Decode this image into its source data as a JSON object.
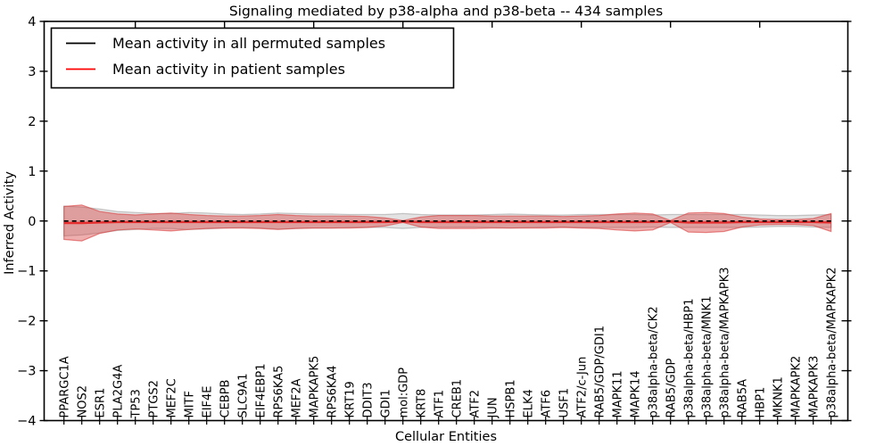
{
  "figure": {
    "background": "#ffffff",
    "spine_color": "#000000"
  },
  "chart_data": {
    "type": "line",
    "title": "Signaling mediated by p38-alpha and p38-beta -- 434 samples",
    "xlabel": "Cellular Entities",
    "ylabel": "Inferred Activity",
    "ylim": [
      -4,
      4
    ],
    "xlim": [
      0,
      45
    ],
    "grid": false,
    "legend_position": "upper left",
    "ytick_labels": [
      "4",
      "3",
      "2",
      "1",
      "0",
      "−1",
      "−2",
      "−3",
      "−4"
    ],
    "yticks": [
      4,
      3,
      2,
      1,
      0,
      -1,
      -2,
      -3,
      -4
    ],
    "top_xticks": [
      5,
      10,
      15,
      20,
      25,
      30,
      35,
      40
    ],
    "categories": [
      "PPARGC1A",
      "NOS2",
      "ESR1",
      "PLA2G4A",
      "TP53",
      "PTGS2",
      "MEF2C",
      "MITF",
      "EIF4E",
      "CEBPB",
      "SLC9A1",
      "EIF4EBP1",
      "RPS6KA5",
      "MEF2A",
      "MAPKAPK5",
      "RPS6KA4",
      "KRT19",
      "DDIT3",
      "GDI1",
      "mol:GDP",
      "KRT8",
      "ATF1",
      "CREB1",
      "ATF2",
      "JUN",
      "HSPB1",
      "ELK4",
      "ATF6",
      "USF1",
      "ATF2/c-Jun",
      "RAB5/GDP/GDI1",
      "MAPK11",
      "MAPK14",
      "p38alpha-beta/CK2",
      "RAB5/GDP",
      "p38alpha-beta/HBP1",
      "p38alpha-beta/MNK1",
      "p38alpha-beta/MAPKAPK3",
      "RAB5A",
      "HBP1",
      "MKNK1",
      "MAPKAPK2",
      "MAPKAPK3",
      "p38alpha-beta/MAPKAPK2"
    ],
    "series": [
      {
        "name": "Mean activity in all permuted samples",
        "color": "#000000",
        "line_style": "dashed",
        "band_fill": "rgba(128,128,128,0.22)",
        "band_edge": "rgba(110,110,110,0.35)",
        "values": [
          0,
          0,
          0,
          0,
          0,
          0,
          0,
          0,
          0,
          0,
          0,
          0,
          0,
          0,
          0,
          0,
          0,
          0,
          0,
          0,
          0,
          0,
          0,
          0,
          0,
          0,
          0,
          0,
          0,
          0,
          0,
          0,
          0,
          0,
          0,
          0,
          0,
          0,
          0,
          0,
          0,
          0,
          0,
          0
        ],
        "band_half_widths": [
          0.3,
          0.28,
          0.24,
          0.19,
          0.17,
          0.15,
          0.15,
          0.17,
          0.16,
          0.14,
          0.13,
          0.14,
          0.16,
          0.15,
          0.14,
          0.14,
          0.13,
          0.13,
          0.13,
          0.15,
          0.13,
          0.12,
          0.12,
          0.12,
          0.13,
          0.14,
          0.13,
          0.12,
          0.12,
          0.13,
          0.13,
          0.13,
          0.13,
          0.12,
          0.13,
          0.13,
          0.13,
          0.13,
          0.13,
          0.12,
          0.11,
          0.11,
          0.12,
          0.13
        ]
      },
      {
        "name": "Mean activity in patient samples",
        "color": "#ff0000",
        "line_style": "solid",
        "band_fill": "rgba(217,62,62,0.42)",
        "band_edge": "rgba(217,62,62,0.60)",
        "values": [
          -0.04,
          -0.04,
          -0.03,
          -0.02,
          -0.02,
          -0.02,
          -0.02,
          -0.02,
          -0.02,
          -0.02,
          -0.02,
          -0.02,
          -0.02,
          -0.02,
          -0.02,
          -0.02,
          -0.02,
          -0.02,
          -0.02,
          -0.01,
          -0.02,
          -0.02,
          -0.02,
          -0.02,
          -0.02,
          -0.02,
          -0.02,
          -0.02,
          -0.02,
          -0.02,
          -0.02,
          -0.02,
          -0.02,
          -0.02,
          -0.01,
          -0.03,
          -0.03,
          -0.03,
          -0.02,
          -0.02,
          -0.02,
          -0.02,
          -0.02,
          -0.03
        ],
        "band_half_widths": [
          0.33,
          0.36,
          0.22,
          0.16,
          0.14,
          0.16,
          0.18,
          0.15,
          0.13,
          0.12,
          0.12,
          0.13,
          0.15,
          0.13,
          0.12,
          0.12,
          0.12,
          0.11,
          0.08,
          0.02,
          0.1,
          0.13,
          0.13,
          0.13,
          0.12,
          0.12,
          0.12,
          0.12,
          0.11,
          0.12,
          0.13,
          0.16,
          0.18,
          0.16,
          0.02,
          0.19,
          0.2,
          0.18,
          0.1,
          0.06,
          0.05,
          0.05,
          0.07,
          0.18
        ]
      }
    ]
  }
}
